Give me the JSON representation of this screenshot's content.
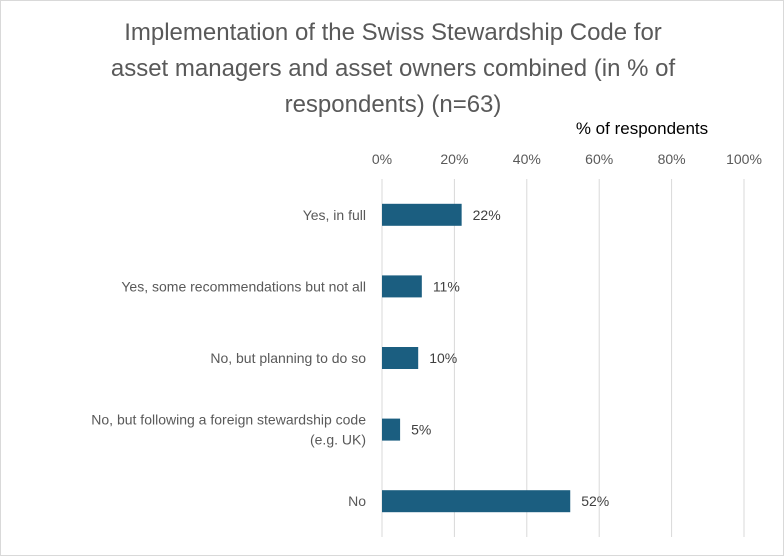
{
  "chart_data": {
    "type": "bar",
    "orientation": "horizontal",
    "title_lines": [
      "Implementation of the Swiss Stewardship Code for",
      "asset managers and asset owners combined (in % of",
      "respondents) (n=63)"
    ],
    "xlabel": "% of respondents",
    "xlabel_position": "top",
    "xlim": [
      0,
      100
    ],
    "x_ticks": [
      "0%",
      "20%",
      "40%",
      "60%",
      "80%",
      "100%"
    ],
    "grid": true,
    "categories": [
      [
        "Yes, in full"
      ],
      [
        "Yes, some recommendations but not all"
      ],
      [
        "No, but planning to do so"
      ],
      [
        "No, but following a foreign stewardship code",
        "(e.g. UK)"
      ],
      [
        "No"
      ]
    ],
    "values": [
      22,
      11,
      10,
      5,
      52
    ],
    "data_labels": [
      "22%",
      "11%",
      "10%",
      "5%",
      "52%"
    ],
    "bar_color": "#1b5e80",
    "grid_color": "#d9d9d9"
  }
}
